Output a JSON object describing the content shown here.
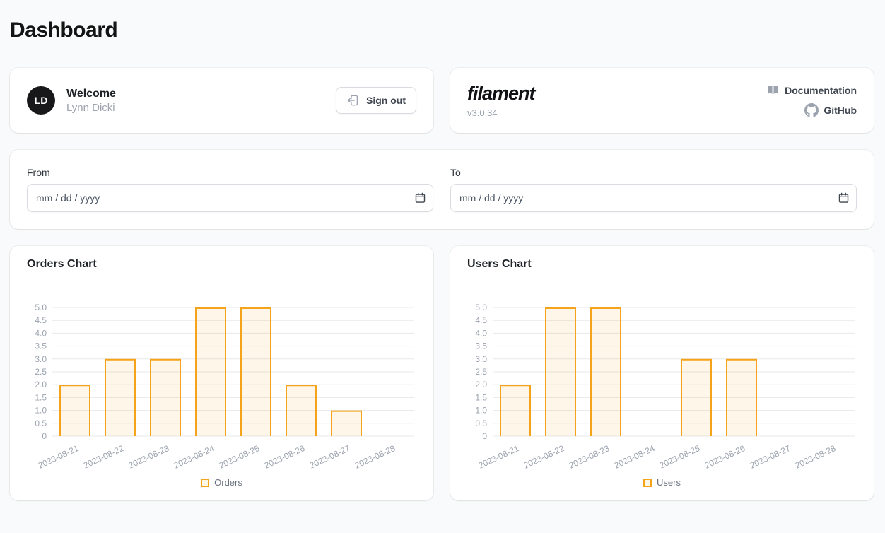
{
  "page": {
    "title": "Dashboard"
  },
  "welcome_card": {
    "avatar_initials": "LD",
    "greeting": "Welcome",
    "user_name": "Lynn Dicki",
    "sign_out_label": "Sign out"
  },
  "filament_card": {
    "logo_text": "filament",
    "version": "v3.0.34",
    "links": [
      {
        "icon": "book-icon",
        "label": "Documentation"
      },
      {
        "icon": "github-icon",
        "label": "GitHub"
      }
    ]
  },
  "filter_card": {
    "from": {
      "label": "From",
      "value": "",
      "placeholder": "mm / dd / yyyy"
    },
    "to": {
      "label": "To",
      "value": "",
      "placeholder": "mm / dd / yyyy"
    }
  },
  "colors": {
    "bar_border": "#F5A31B",
    "bar_fill": "rgba(245,163,27,0.10)",
    "gridline": "#e6e8eb",
    "axis_text": "#9ca3af",
    "page_background": "#f9fafb"
  },
  "chart_data": [
    {
      "type": "bar",
      "title": "Orders Chart",
      "categories": [
        "2023-08-21",
        "2023-08-22",
        "2023-08-23",
        "2023-08-24",
        "2023-08-25",
        "2023-08-26",
        "2023-08-27",
        "2023-08-28"
      ],
      "series": [
        {
          "name": "Orders",
          "values": [
            2,
            3,
            3,
            5,
            5,
            2,
            1,
            0
          ]
        }
      ],
      "xlabel": "",
      "ylabel": "",
      "ylim": [
        0,
        5
      ],
      "ytick_step": 0.5,
      "grid": true,
      "legend_position": "bottom"
    },
    {
      "type": "bar",
      "title": "Users Chart",
      "categories": [
        "2023-08-21",
        "2023-08-22",
        "2023-08-23",
        "2023-08-24",
        "2023-08-25",
        "2023-08-26",
        "2023-08-27",
        "2023-08-28"
      ],
      "series": [
        {
          "name": "Users",
          "values": [
            2,
            5,
            5,
            0,
            3,
            3,
            0,
            0
          ]
        }
      ],
      "xlabel": "",
      "ylabel": "",
      "ylim": [
        0,
        5
      ],
      "ytick_step": 0.5,
      "grid": true,
      "legend_position": "bottom"
    }
  ]
}
